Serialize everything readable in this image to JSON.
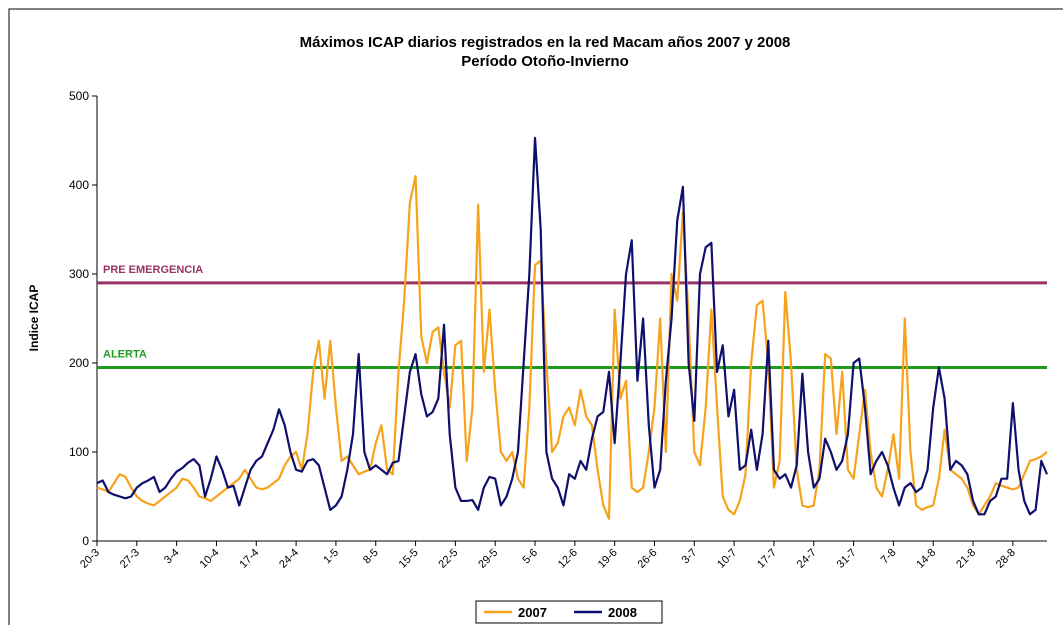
{
  "chart_data": {
    "type": "line",
    "title": "Máximos ICAP diarios registrados en la red Macam años 2007 y 2008",
    "subtitle": "Período Otoño-Invierno",
    "y_label": "Indice ICAP",
    "ylim": [
      0,
      500
    ],
    "yticks": [
      0,
      100,
      200,
      300,
      400,
      500
    ],
    "categories": [
      "20-3",
      null,
      null,
      null,
      null,
      null,
      null,
      "27-3",
      null,
      null,
      null,
      null,
      null,
      null,
      "3-4",
      null,
      null,
      null,
      null,
      null,
      null,
      "10-4",
      null,
      null,
      null,
      null,
      null,
      null,
      "17-4",
      null,
      null,
      null,
      null,
      null,
      null,
      "24-4",
      null,
      null,
      null,
      null,
      null,
      null,
      "1-5",
      null,
      null,
      null,
      null,
      null,
      null,
      "8-5",
      null,
      null,
      null,
      null,
      null,
      null,
      "15-5",
      null,
      null,
      null,
      null,
      null,
      null,
      "22-5",
      null,
      null,
      null,
      null,
      null,
      null,
      "29-5",
      null,
      null,
      null,
      null,
      null,
      null,
      "5-6",
      null,
      null,
      null,
      null,
      null,
      null,
      "12-6",
      null,
      null,
      null,
      null,
      null,
      null,
      "19-6",
      null,
      null,
      null,
      null,
      null,
      null,
      "26-6",
      null,
      null,
      null,
      null,
      null,
      null,
      "3-7",
      null,
      null,
      null,
      null,
      null,
      null,
      "10-7",
      null,
      null,
      null,
      null,
      null,
      null,
      "17-7",
      null,
      null,
      null,
      null,
      null,
      null,
      "24-7",
      null,
      null,
      null,
      null,
      null,
      null,
      "31-7",
      null,
      null,
      null,
      null,
      null,
      null,
      "7-8",
      null,
      null,
      null,
      null,
      null,
      null,
      "14-8",
      null,
      null,
      null,
      null,
      null,
      null,
      "21-8",
      null,
      null,
      null,
      null,
      null,
      null,
      "28-8",
      null,
      null,
      null,
      null,
      null,
      null
    ],
    "series": [
      {
        "name": "2007",
        "color": "#f7a21b",
        "values": [
          60,
          58,
          55,
          65,
          75,
          72,
          60,
          50,
          45,
          42,
          40,
          45,
          50,
          55,
          60,
          70,
          68,
          60,
          50,
          48,
          45,
          50,
          55,
          60,
          65,
          70,
          80,
          70,
          60,
          58,
          60,
          65,
          70,
          85,
          95,
          100,
          80,
          120,
          190,
          225,
          160,
          225,
          150,
          90,
          95,
          85,
          75,
          78,
          80,
          110,
          130,
          80,
          75,
          190,
          270,
          380,
          410,
          230,
          200,
          235,
          240,
          190,
          150,
          220,
          225,
          90,
          150,
          378,
          190,
          260,
          170,
          100,
          90,
          100,
          70,
          60,
          150,
          310,
          315,
          200,
          100,
          110,
          140,
          150,
          130,
          170,
          140,
          130,
          80,
          40,
          25,
          260,
          160,
          180,
          60,
          55,
          60,
          100,
          150,
          250,
          100,
          300,
          270,
          370,
          250,
          100,
          85,
          150,
          260,
          150,
          50,
          35,
          30,
          45,
          75,
          200,
          265,
          270,
          200,
          60,
          90,
          280,
          200,
          80,
          40,
          38,
          40,
          80,
          210,
          205,
          120,
          190,
          80,
          70,
          120,
          170,
          100,
          60,
          50,
          80,
          120,
          70,
          250,
          100,
          40,
          35,
          38,
          40,
          70,
          125,
          80,
          75,
          70,
          60,
          40,
          30,
          40,
          50,
          65,
          62,
          60,
          58,
          60,
          75,
          90,
          92,
          95,
          100
        ]
      },
      {
        "name": "2008",
        "color": "#0f0f6e",
        "values": [
          65,
          68,
          55,
          52,
          50,
          48,
          50,
          60,
          65,
          68,
          72,
          55,
          60,
          70,
          78,
          82,
          88,
          92,
          85,
          50,
          70,
          95,
          80,
          60,
          62,
          40,
          60,
          80,
          90,
          95,
          110,
          125,
          148,
          130,
          100,
          80,
          78,
          90,
          92,
          85,
          60,
          35,
          40,
          50,
          80,
          120,
          210,
          100,
          80,
          85,
          80,
          75,
          88,
          90,
          140,
          190,
          210,
          165,
          140,
          145,
          160,
          243,
          120,
          60,
          45,
          45,
          46,
          35,
          60,
          72,
          70,
          40,
          50,
          70,
          100,
          200,
          300,
          453,
          350,
          100,
          70,
          60,
          40,
          75,
          70,
          90,
          80,
          115,
          140,
          145,
          190,
          110,
          200,
          300,
          338,
          180,
          250,
          130,
          60,
          80,
          180,
          250,
          360,
          398,
          200,
          135,
          300,
          330,
          335,
          190,
          220,
          140,
          170,
          80,
          85,
          125,
          80,
          120,
          225,
          80,
          70,
          75,
          60,
          85,
          188,
          100,
          60,
          70,
          115,
          100,
          80,
          90,
          120,
          200,
          205,
          150,
          75,
          90,
          100,
          85,
          60,
          40,
          60,
          65,
          55,
          60,
          80,
          150,
          195,
          160,
          80,
          90,
          85,
          75,
          45,
          30,
          30,
          45,
          50,
          70,
          70,
          155,
          80,
          45,
          30,
          35,
          90,
          75
        ]
      }
    ],
    "reference_lines": [
      {
        "label": "PRE EMERGENCIA",
        "value": 290,
        "color": "#993366"
      },
      {
        "label": "ALERTA",
        "value": 195,
        "color": "#1e9a1e"
      }
    ]
  }
}
